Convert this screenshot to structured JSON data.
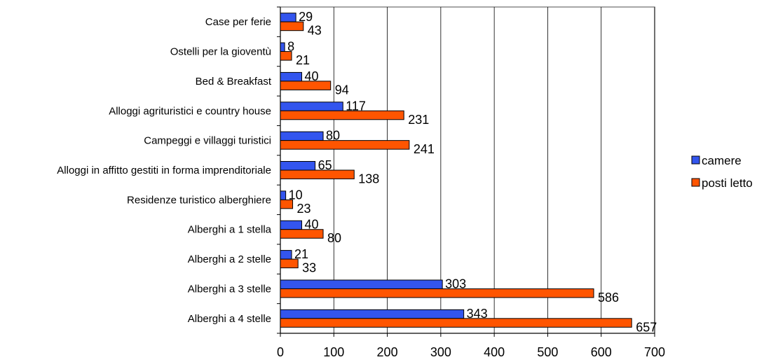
{
  "chart_data": {
    "type": "bar",
    "orientation": "horizontal",
    "categories": [
      "Case per ferie",
      "Ostelli per la gioventù",
      "Bed & Breakfast",
      "Alloggi agrituristici e country house",
      "Campeggi e villaggi turistici",
      "Alloggi in affitto gestiti in forma imprenditoriale",
      "Residenze turistico alberghiere",
      "Alberghi a 1 stella",
      "Alberghi a 2 stelle",
      "Alberghi a 3 stelle",
      "Alberghi a 4 stelle"
    ],
    "series": [
      {
        "name": "camere",
        "color": "#3355ee",
        "values": [
          29,
          8,
          40,
          117,
          80,
          65,
          10,
          40,
          21,
          303,
          343
        ]
      },
      {
        "name": "posti letto",
        "color": "#ff5500",
        "values": [
          43,
          21,
          94,
          231,
          241,
          138,
          23,
          80,
          33,
          586,
          657
        ]
      }
    ],
    "xlim": [
      0,
      700
    ],
    "xticks": [
      0,
      100,
      200,
      300,
      400,
      500,
      600,
      700
    ],
    "grid": "vertical",
    "legend": "right",
    "title": "",
    "xlabel": "",
    "ylabel": ""
  }
}
